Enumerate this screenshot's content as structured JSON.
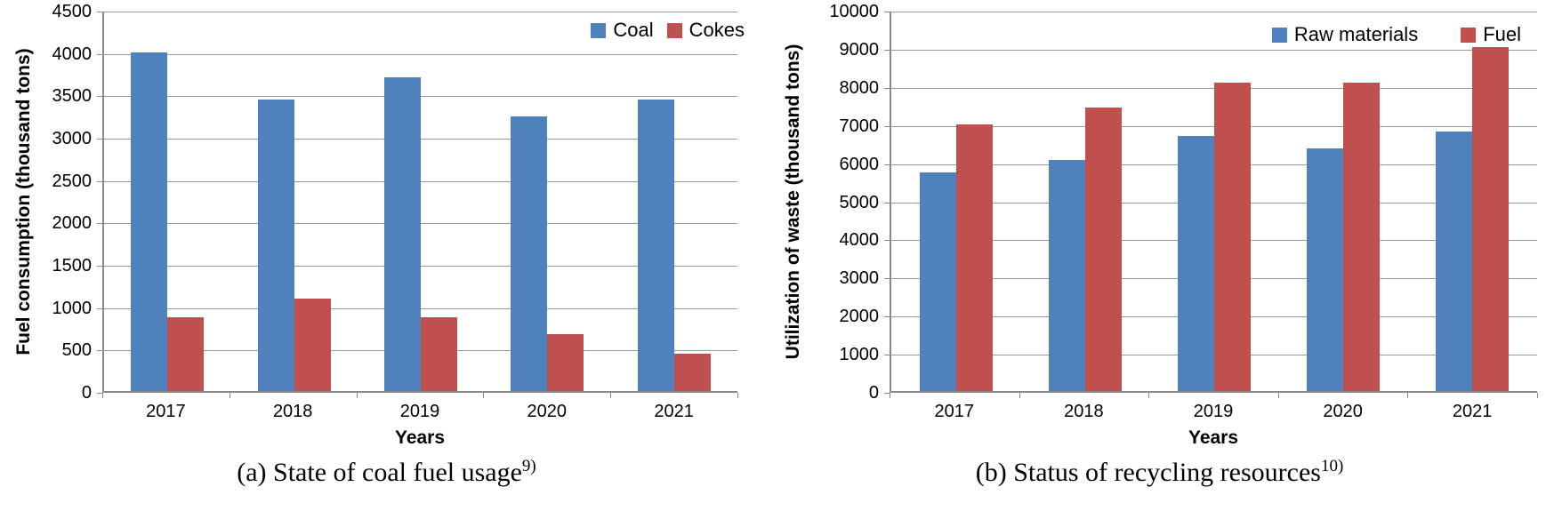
{
  "page": {
    "background": "#ffffff"
  },
  "colors": {
    "series_blue": "#4F81BD",
    "series_red": "#C0504D",
    "gridline": "#9a9a9a",
    "axis": "#898989",
    "text": "#000000"
  },
  "chart_data": [
    {
      "type": "bar",
      "caption": "(a) State of coal fuel usage",
      "caption_superscript": "9)",
      "xlabel": "Years",
      "ylabel": "Fuel consumption (thousand tons)",
      "categories": [
        "2017",
        "2018",
        "2019",
        "2020",
        "2021"
      ],
      "series": [
        {
          "name": "Coal",
          "color": "#4F81BD",
          "values": [
            4000,
            3440,
            3700,
            3240,
            3440
          ]
        },
        {
          "name": "Cokes",
          "color": "#C0504D",
          "values": [
            870,
            1090,
            870,
            670,
            440
          ]
        }
      ],
      "ylim": [
        0,
        4500
      ],
      "ytick_step": 500,
      "grid": true,
      "legend_position": "top-right"
    },
    {
      "type": "bar",
      "caption": "(b) Status of recycling resources",
      "caption_superscript": "10)",
      "xlabel": "Years",
      "ylabel": "Utilization of waste (thousand tons)",
      "categories": [
        "2017",
        "2018",
        "2019",
        "2020",
        "2021"
      ],
      "series": [
        {
          "name": "Raw materials",
          "color": "#4F81BD",
          "values": [
            5730,
            6070,
            6700,
            6360,
            6800
          ]
        },
        {
          "name": "Fuel",
          "color": "#C0504D",
          "values": [
            7000,
            7430,
            8100,
            8080,
            9030
          ]
        }
      ],
      "ylim": [
        0,
        10000
      ],
      "ytick_step": 1000,
      "grid": true,
      "legend_position": "top-right"
    }
  ]
}
